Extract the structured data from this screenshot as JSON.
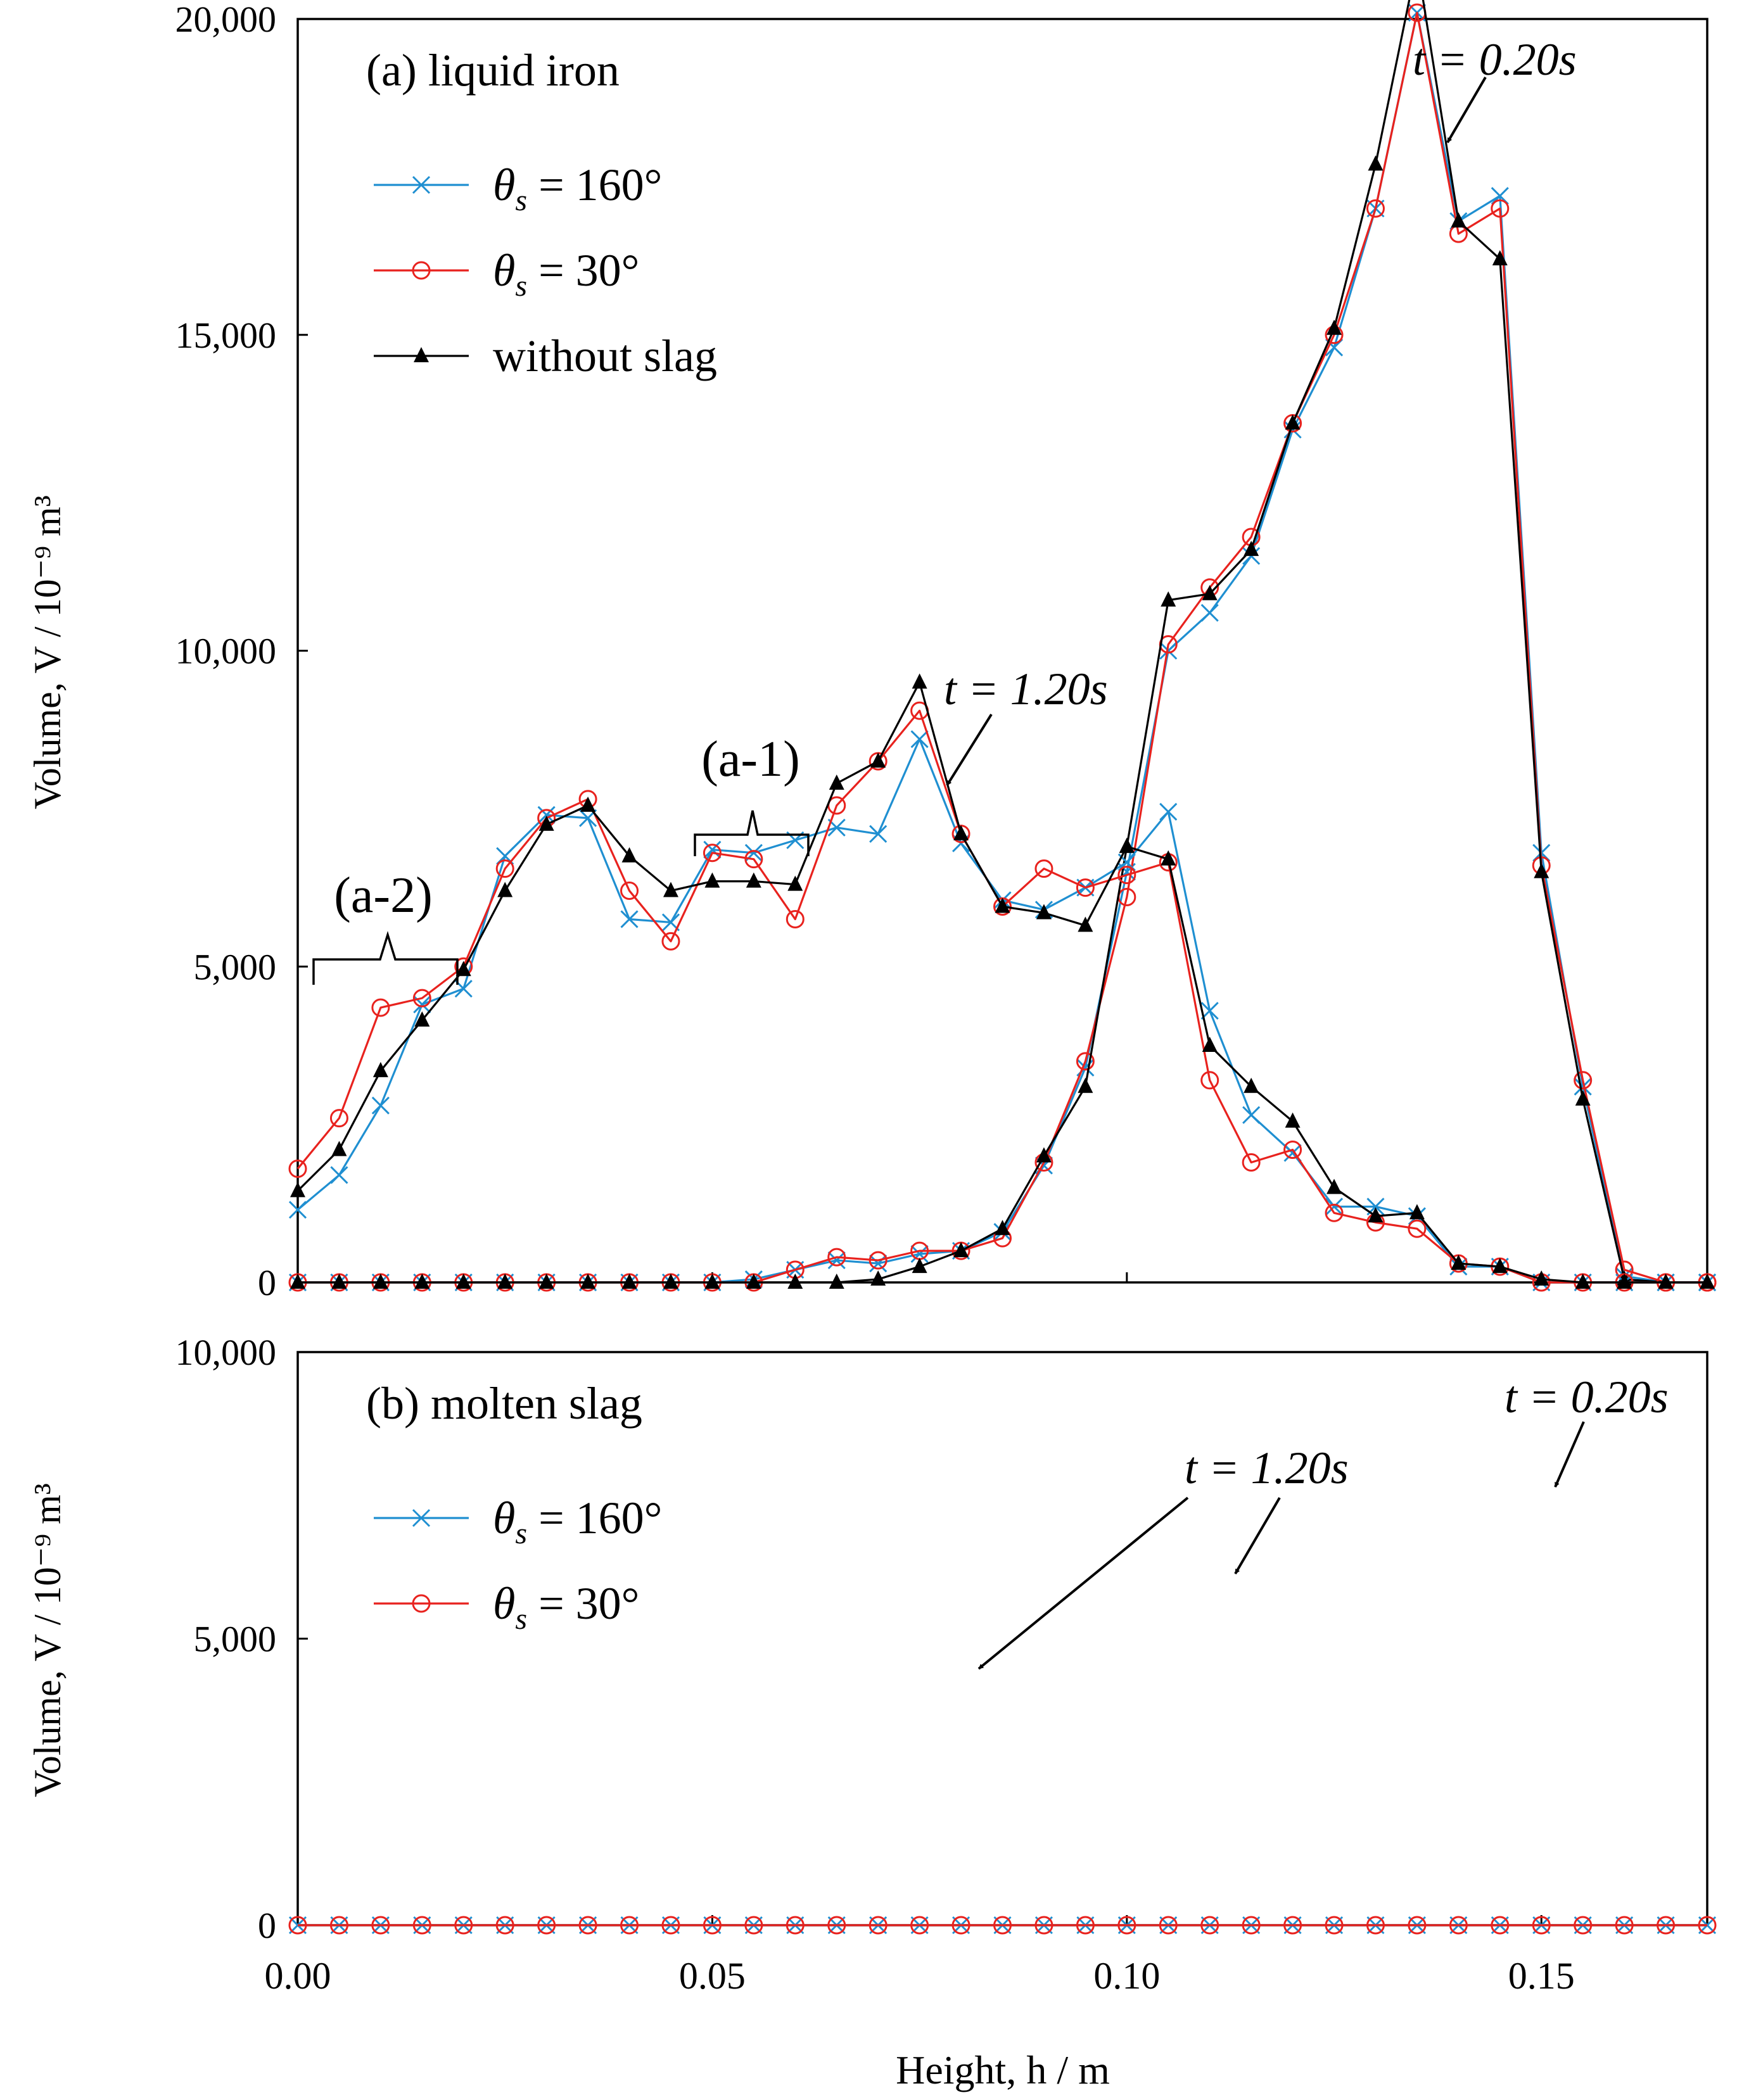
{
  "colors": {
    "blue": "#1f8fd1",
    "red": "#e8221e",
    "black": "#000000"
  },
  "figure": {
    "xlabel": "Height, h / m",
    "ylabel": "Volume, V / 10⁻⁹ m³",
    "xticks": [
      "0.00",
      "0.05",
      "0.10",
      "0.15"
    ]
  },
  "chart_data": [
    {
      "type": "line",
      "id": "a",
      "title": "(a) liquid iron",
      "xlabel": "Height, h / m",
      "ylabel": "Volume, V / 10⁻⁹ m³",
      "xlim": [
        0,
        0.17
      ],
      "ylim": [
        0,
        20000
      ],
      "yticks": [
        "0",
        "5,000",
        "10,000",
        "15,000",
        "20,000"
      ],
      "legend_position": "top-left",
      "annotations": {
        "t020": "t = 0.20s",
        "t120": "t = 1.20s",
        "a1": "(a-1)",
        "a2": "(a-2)"
      },
      "x": [
        0.0,
        0.005,
        0.01,
        0.015,
        0.02,
        0.025,
        0.03,
        0.035,
        0.04,
        0.045,
        0.05,
        0.055,
        0.06,
        0.065,
        0.07,
        0.075,
        0.08,
        0.085,
        0.09,
        0.095,
        0.1,
        0.105,
        0.11,
        0.115,
        0.12,
        0.125,
        0.13,
        0.135,
        0.14,
        0.145,
        0.15,
        0.155,
        0.16,
        0.165,
        0.17
      ],
      "series": [
        {
          "name": "θs = 160°",
          "legend_symbol": "θ",
          "legend_sub": "s",
          "legend_rest": " = 160°",
          "marker": "x",
          "color": "#1f8fd1",
          "time": "t = 0.20s",
          "values": [
            0,
            0,
            0,
            0,
            0,
            0,
            0,
            0,
            0,
            0,
            0,
            50,
            200,
            350,
            300,
            450,
            500,
            800,
            1850,
            3400,
            6500,
            10000,
            10600,
            11500,
            13500,
            14800,
            17000,
            20100,
            16800,
            17200,
            6800,
            3100,
            100,
            0,
            0
          ]
        },
        {
          "name": "θs = 30°",
          "legend_symbol": "θ",
          "legend_sub": "s",
          "legend_rest": " = 30°",
          "marker": "o",
          "color": "#e8221e",
          "time": "t = 0.20s",
          "values": [
            0,
            0,
            0,
            0,
            0,
            0,
            0,
            0,
            0,
            0,
            0,
            0,
            200,
            400,
            350,
            500,
            500,
            700,
            1900,
            3500,
            6100,
            10100,
            11000,
            11800,
            13600,
            15000,
            17000,
            20100,
            16600,
            17000,
            6600,
            3200,
            200,
            0,
            0
          ]
        },
        {
          "name": "without slag",
          "legend_symbol": "",
          "legend_sub": "",
          "legend_rest": "without slag",
          "marker": "triangle",
          "color": "#000000",
          "time": "t = 0.20s",
          "values": [
            0,
            0,
            0,
            0,
            0,
            0,
            0,
            0,
            0,
            0,
            0,
            0,
            0,
            0,
            50,
            250,
            500,
            850,
            2000,
            3100,
            6900,
            10800,
            10900,
            11600,
            13600,
            15100,
            17700,
            20900,
            16800,
            16200,
            6500,
            2900,
            50,
            0,
            0
          ]
        },
        {
          "name": "θs = 160°",
          "marker": "x",
          "color": "#1f8fd1",
          "time": "t = 1.20s",
          "legend": false,
          "values": [
            1150,
            1700,
            2800,
            4400,
            4650,
            6750,
            7400,
            7350,
            5750,
            5700,
            6850,
            6800,
            7000,
            7200,
            7100,
            8600,
            6950,
            6050,
            5900,
            6250,
            6650,
            7450,
            4300,
            2650,
            2050,
            1200,
            1200,
            1050,
            250,
            250,
            0,
            0,
            0,
            0,
            0
          ]
        },
        {
          "name": "θs = 30°",
          "marker": "o",
          "color": "#e8221e",
          "time": "t = 1.20s",
          "legend": false,
          "values": [
            1800,
            2600,
            4350,
            4500,
            5000,
            6550,
            7350,
            7650,
            6200,
            5400,
            6800,
            6700,
            5750,
            7550,
            8250,
            9050,
            7100,
            5950,
            6550,
            6250,
            6450,
            6650,
            3200,
            1900,
            2100,
            1100,
            950,
            850,
            300,
            250,
            0,
            0,
            0,
            0,
            0
          ]
        },
        {
          "name": "without slag",
          "marker": "triangle",
          "color": "#000000",
          "time": "t = 1.20s",
          "legend": false,
          "values": [
            1450,
            2100,
            3350,
            4150,
            4950,
            6200,
            7250,
            7550,
            6750,
            6200,
            6350,
            6350,
            6300,
            7900,
            8250,
            9500,
            7100,
            5950,
            5850,
            5650,
            6900,
            6700,
            3750,
            3100,
            2550,
            1500,
            1050,
            1100,
            300,
            250,
            50,
            0,
            0,
            0,
            0
          ]
        }
      ]
    },
    {
      "type": "line",
      "id": "b",
      "title": "(b) molten slag",
      "xlabel": "Height, h / m",
      "ylabel": "Volume, V / 10⁻⁹ m³",
      "xlim": [
        0,
        0.17
      ],
      "ylim": [
        0,
        10000
      ],
      "yticks": [
        "0",
        "5,000",
        "10,000"
      ],
      "legend_position": "top-left",
      "annotations": {
        "t020": "t = 0.20s",
        "t120": "t = 1.20s"
      },
      "x": [
        0.0,
        0.005,
        0.01,
        0.015,
        0.02,
        0.025,
        0.03,
        0.035,
        0.04,
        0.045,
        0.05,
        0.055,
        0.06,
        0.065,
        0.07,
        0.075,
        0.08,
        0.085,
        0.09,
        0.095,
        0.1,
        0.105,
        0.11,
        0.115,
        0.12,
        0.125,
        0.13,
        0.135,
        0.14,
        0.145,
        0.15,
        0.155,
        0.16,
        0.165,
        0.17
      ],
      "series": [
        {
          "name": "θs = 160°",
          "legend_symbol": "θ",
          "legend_sub": "s",
          "legend_rest": " = 160°",
          "marker": "x",
          "color": "#1f8fd1",
          "time": "t = 0.20s",
          "values": [
            0,
            0,
            0,
            0,
            0,
            0,
            0,
            0,
            0,
            0,
            0,
            0,
            0,
            0,
            0,
            0,
            0,
            0,
            0,
            0,
            0,
            0,
            0,
            0,
            0,
            0,
            0,
            0,
            0,
            0,
            0,
            0,
            0,
            0,
            0
          ]
        },
        {
          "name": "θs = 30°",
          "legend_symbol": "θ",
          "legend_sub": "s",
          "legend_rest": " = 30°",
          "marker": "o",
          "color": "#e8221e",
          "time": "t = 0.20s",
          "values": [
            0,
            0,
            0,
            0,
            0,
            0,
            0,
            0,
            0,
            0,
            0,
            0,
            0,
            0,
            0,
            0,
            0,
            0,
            0,
            0,
            0,
            0,
            0,
            0,
            0,
            0,
            0,
            0,
            0,
            0,
            0,
            0,
            0,
            0,
            0
          ]
        }
      ]
    }
  ]
}
